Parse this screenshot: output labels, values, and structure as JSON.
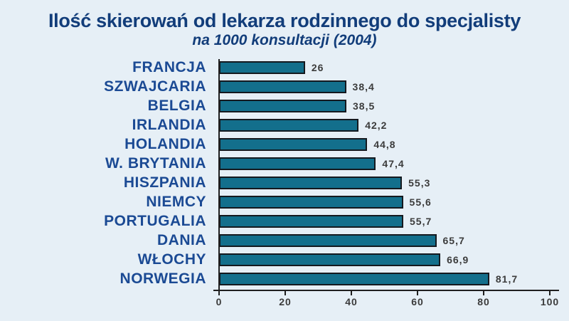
{
  "chart_data": {
    "type": "bar",
    "orientation": "horizontal",
    "title": "Ilość skierowań od lekarza rodzinnego do specjalisty",
    "subtitle": "na 1000 konsultacji (2004)",
    "categories": [
      "FRANCJA",
      "SZWAJCARIA",
      "BELGIA",
      "IRLANDIA",
      "HOLANDIA",
      "W. BRYTANIA",
      "HISZPANIA",
      "NIEMCY",
      "PORTUGALIA",
      "DANIA",
      "WŁOCHY",
      "NORWEGIA"
    ],
    "values": [
      26,
      38.4,
      38.5,
      42.2,
      44.8,
      47.4,
      55.3,
      55.6,
      55.7,
      65.7,
      66.9,
      81.7
    ],
    "value_labels": [
      "26",
      "38,4",
      "38,5",
      "42,2",
      "44,8",
      "47,4",
      "55,3",
      "55,6",
      "55,7",
      "65,7",
      "66,9",
      "81,7"
    ],
    "xlabel": "",
    "ylabel": "",
    "xlim": [
      0,
      100
    ],
    "x_ticks": [
      0,
      20,
      40,
      60,
      80,
      100
    ],
    "grid": false,
    "legend": false,
    "colors": {
      "background": "#e6eff6",
      "title": "#123d7a",
      "category_label": "#1b4a94",
      "bar_fill": "#136f8c",
      "bar_border": "#14191f",
      "value_label": "#3b3b3b",
      "axis": "#1f1f1f"
    }
  }
}
